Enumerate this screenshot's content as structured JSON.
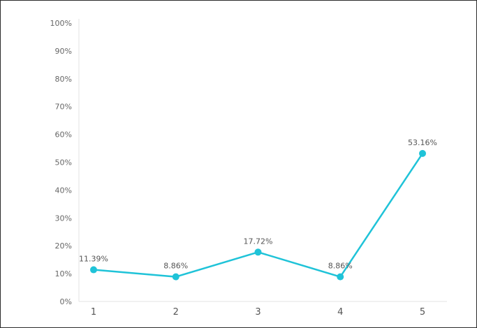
{
  "chart_data": {
    "type": "line",
    "categories": [
      "1",
      "2",
      "3",
      "4",
      "5"
    ],
    "series": [
      {
        "values": [
          11.39,
          8.86,
          17.72,
          8.86,
          53.16
        ]
      }
    ],
    "data_labels": [
      "11.39%",
      "8.86%",
      "17.72%",
      "8.86%",
      "53.16%"
    ],
    "y_ticks": [
      "0%",
      "10%",
      "20%",
      "30%",
      "40%",
      "50%",
      "60%",
      "70%",
      "80%",
      "90%",
      "100%"
    ],
    "ylim": [
      0,
      100
    ],
    "title": "",
    "xlabel": "",
    "ylabel": "",
    "grid": false,
    "colors": {
      "line": "#1fc3d8",
      "axis": "#e3e3e3",
      "frame": "#2b2b2b"
    }
  }
}
